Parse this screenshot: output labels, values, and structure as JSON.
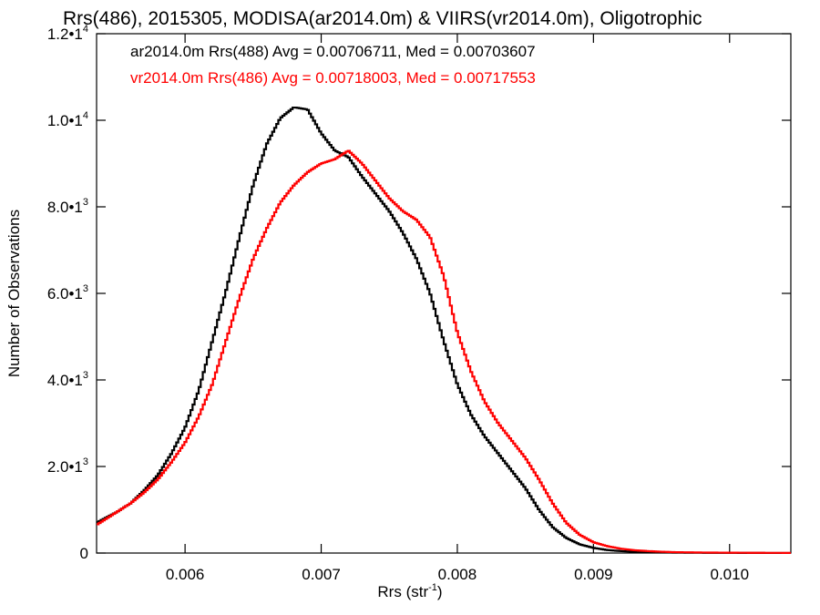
{
  "chart_data": {
    "type": "histogram",
    "title": "Rrs(486), 2015305, MODISA(ar2014.0m) & VIIRS(vr2014.0m), Oligotrophic",
    "xlabel": "Rrs (str",
    "xlabel_sup": "-1",
    "xlabel_suffix": ")",
    "ylabel": "Number of Observations",
    "xlim": [
      0.00535,
      0.01045
    ],
    "ylim": [
      0,
      12000
    ],
    "grid": false,
    "x_ticks": [
      {
        "value": 0.006,
        "label": "0.006"
      },
      {
        "value": 0.007,
        "label": "0.007"
      },
      {
        "value": 0.008,
        "label": "0.008"
      },
      {
        "value": 0.009,
        "label": "0.009"
      },
      {
        "value": 0.01,
        "label": "0.010"
      }
    ],
    "y_ticks": [
      {
        "value": 0,
        "mant": "0",
        "exp": ""
      },
      {
        "value": 2000,
        "mant": "2.0•1",
        "exp": "3"
      },
      {
        "value": 4000,
        "mant": "4.0•1",
        "exp": "3"
      },
      {
        "value": 6000,
        "mant": "6.0•1",
        "exp": "3"
      },
      {
        "value": 8000,
        "mant": "8.0•1",
        "exp": "3"
      },
      {
        "value": 10000,
        "mant": "1.0•1",
        "exp": "4"
      },
      {
        "value": 12000,
        "mant": "1.2•1",
        "exp": "4"
      }
    ],
    "legend_position": "top-left",
    "series": [
      {
        "name": "ar2014.0m Rrs(488) Avg = 0.00706711, Med = 0.00703607",
        "color": "#000000",
        "x": [
          0.00535,
          0.0055,
          0.0056,
          0.0057,
          0.0058,
          0.0059,
          0.006,
          0.0061,
          0.0062,
          0.0063,
          0.0064,
          0.0065,
          0.0066,
          0.0067,
          0.0068,
          0.0069,
          0.007,
          0.0071,
          0.0072,
          0.0073,
          0.0074,
          0.0075,
          0.0076,
          0.0077,
          0.0078,
          0.0079,
          0.008,
          0.0081,
          0.0082,
          0.0083,
          0.0084,
          0.0085,
          0.0086,
          0.0087,
          0.0088,
          0.0089,
          0.009,
          0.0091,
          0.0092,
          0.0093,
          0.0094,
          0.0095,
          0.0096,
          0.0098,
          0.01,
          0.0102,
          0.01045
        ],
        "y": [
          700,
          950,
          1150,
          1450,
          1800,
          2300,
          2900,
          3750,
          4900,
          6050,
          7300,
          8500,
          9450,
          10050,
          10300,
          10250,
          9700,
          9300,
          9150,
          8700,
          8300,
          7900,
          7400,
          6800,
          6000,
          4900,
          3900,
          3200,
          2700,
          2300,
          1900,
          1500,
          1000,
          600,
          350,
          200,
          120,
          70,
          45,
          30,
          20,
          15,
          10,
          6,
          4,
          2,
          1
        ]
      },
      {
        "name": "vr2014.0m Rrs(486) Avg = 0.00718003, Med = 0.00717553",
        "color": "#ff0000",
        "x": [
          0.00535,
          0.0055,
          0.0056,
          0.0057,
          0.0058,
          0.0059,
          0.006,
          0.0061,
          0.0062,
          0.0063,
          0.0064,
          0.0065,
          0.0066,
          0.0067,
          0.0068,
          0.0069,
          0.007,
          0.0071,
          0.0072,
          0.0073,
          0.0074,
          0.0075,
          0.0076,
          0.0077,
          0.0078,
          0.0079,
          0.008,
          0.0081,
          0.0082,
          0.0083,
          0.0084,
          0.0085,
          0.0086,
          0.0087,
          0.0088,
          0.0089,
          0.009,
          0.0091,
          0.0092,
          0.0093,
          0.0094,
          0.0095,
          0.0096,
          0.0098,
          0.01,
          0.0102,
          0.01045
        ],
        "y": [
          650,
          950,
          1150,
          1400,
          1700,
          2100,
          2550,
          3150,
          3900,
          4900,
          5900,
          6800,
          7500,
          8100,
          8500,
          8800,
          9000,
          9100,
          9300,
          9000,
          8600,
          8200,
          7900,
          7700,
          7300,
          6400,
          5100,
          4200,
          3500,
          3000,
          2600,
          2200,
          1700,
          1150,
          700,
          420,
          250,
          160,
          100,
          65,
          45,
          30,
          20,
          12,
          8,
          5,
          3
        ]
      }
    ]
  }
}
